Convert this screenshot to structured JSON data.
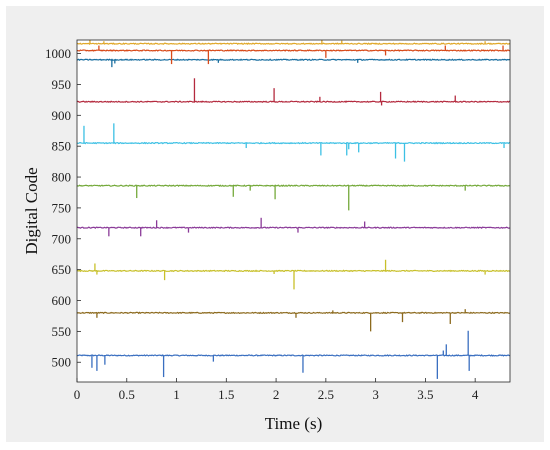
{
  "chart_data": {
    "type": "line",
    "title": "",
    "xlabel": "Time (s)",
    "ylabel": "Digital Code",
    "xlim": [
      0,
      4.35
    ],
    "ylim": [
      468,
      1022
    ],
    "xticks": [
      "0",
      "0.5",
      "1",
      "1.5",
      "2",
      "2.5",
      "3",
      "3.5",
      "4"
    ],
    "yticks": [
      "500",
      "550",
      "600",
      "650",
      "700",
      "750",
      "800",
      "850",
      "900",
      "950",
      "1000"
    ],
    "grid": false,
    "legend": "none",
    "series": [
      {
        "baseline": 511,
        "color": "#3a6fc0",
        "spikes": [
          [
            0.15,
            -20
          ],
          [
            0.2,
            -25
          ],
          [
            0.28,
            -15
          ],
          [
            0.87,
            -35
          ],
          [
            1.37,
            -10
          ],
          [
            2.27,
            -28
          ],
          [
            3.62,
            -38
          ],
          [
            3.68,
            8
          ],
          [
            3.71,
            18
          ],
          [
            3.93,
            40
          ],
          [
            3.94,
            -25
          ]
        ]
      },
      {
        "baseline": 580,
        "color": "#8c6a1e",
        "spikes": [
          [
            0.2,
            -8
          ],
          [
            2.2,
            -8
          ],
          [
            2.57,
            4
          ],
          [
            2.95,
            -30
          ],
          [
            3.27,
            -15
          ],
          [
            3.75,
            -18
          ],
          [
            3.9,
            6
          ]
        ]
      },
      {
        "baseline": 648,
        "color": "#c8c02a",
        "spikes": [
          [
            0.18,
            12
          ],
          [
            0.2,
            -6
          ],
          [
            0.88,
            -15
          ],
          [
            1.98,
            -5
          ],
          [
            2.18,
            -30
          ],
          [
            3.1,
            18
          ],
          [
            4.1,
            -6
          ]
        ]
      },
      {
        "baseline": 718,
        "color": "#8a3a98",
        "spikes": [
          [
            0.32,
            -14
          ],
          [
            0.64,
            -14
          ],
          [
            0.8,
            12
          ],
          [
            1.12,
            -8
          ],
          [
            1.85,
            16
          ],
          [
            2.22,
            -8
          ],
          [
            2.89,
            10
          ]
        ]
      },
      {
        "baseline": 786,
        "color": "#74a93a",
        "spikes": [
          [
            0.6,
            -20
          ],
          [
            1.57,
            -18
          ],
          [
            1.74,
            -8
          ],
          [
            1.99,
            -22
          ],
          [
            2.73,
            -40
          ],
          [
            3.9,
            -8
          ]
        ]
      },
      {
        "baseline": 855,
        "color": "#3cc0e4",
        "spikes": [
          [
            0.07,
            28
          ],
          [
            0.37,
            32
          ],
          [
            1.7,
            -8
          ],
          [
            2.45,
            -20
          ],
          [
            2.71,
            -20
          ],
          [
            2.73,
            -10
          ],
          [
            2.83,
            -15
          ],
          [
            3.2,
            -25
          ],
          [
            3.29,
            -30
          ],
          [
            4.29,
            -8
          ]
        ]
      },
      {
        "baseline": 922,
        "color": "#b42a3e",
        "spikes": [
          [
            1.18,
            38
          ],
          [
            1.98,
            22
          ],
          [
            2.44,
            8
          ],
          [
            3.05,
            16
          ],
          [
            3.06,
            -6
          ],
          [
            3.8,
            10
          ]
        ]
      },
      {
        "baseline": 990,
        "color": "#1a6fa0",
        "spikes": [
          [
            0.35,
            -12
          ],
          [
            0.38,
            -6
          ],
          [
            1.42,
            -5
          ],
          [
            2.82,
            -5
          ]
        ]
      },
      {
        "baseline": 1005,
        "color": "#d84a1a",
        "spikes": [
          [
            0.22,
            8
          ],
          [
            0.95,
            -22
          ],
          [
            1.32,
            -22
          ],
          [
            2.5,
            -12
          ],
          [
            3.1,
            -8
          ],
          [
            3.7,
            8
          ],
          [
            4.28,
            8
          ]
        ]
      },
      {
        "baseline": 1016,
        "color": "#e0a82a",
        "spikes": [
          [
            0.13,
            10
          ],
          [
            0.27,
            4
          ],
          [
            2.46,
            8
          ],
          [
            2.66,
            5
          ],
          [
            4.1,
            4
          ]
        ]
      }
    ]
  }
}
